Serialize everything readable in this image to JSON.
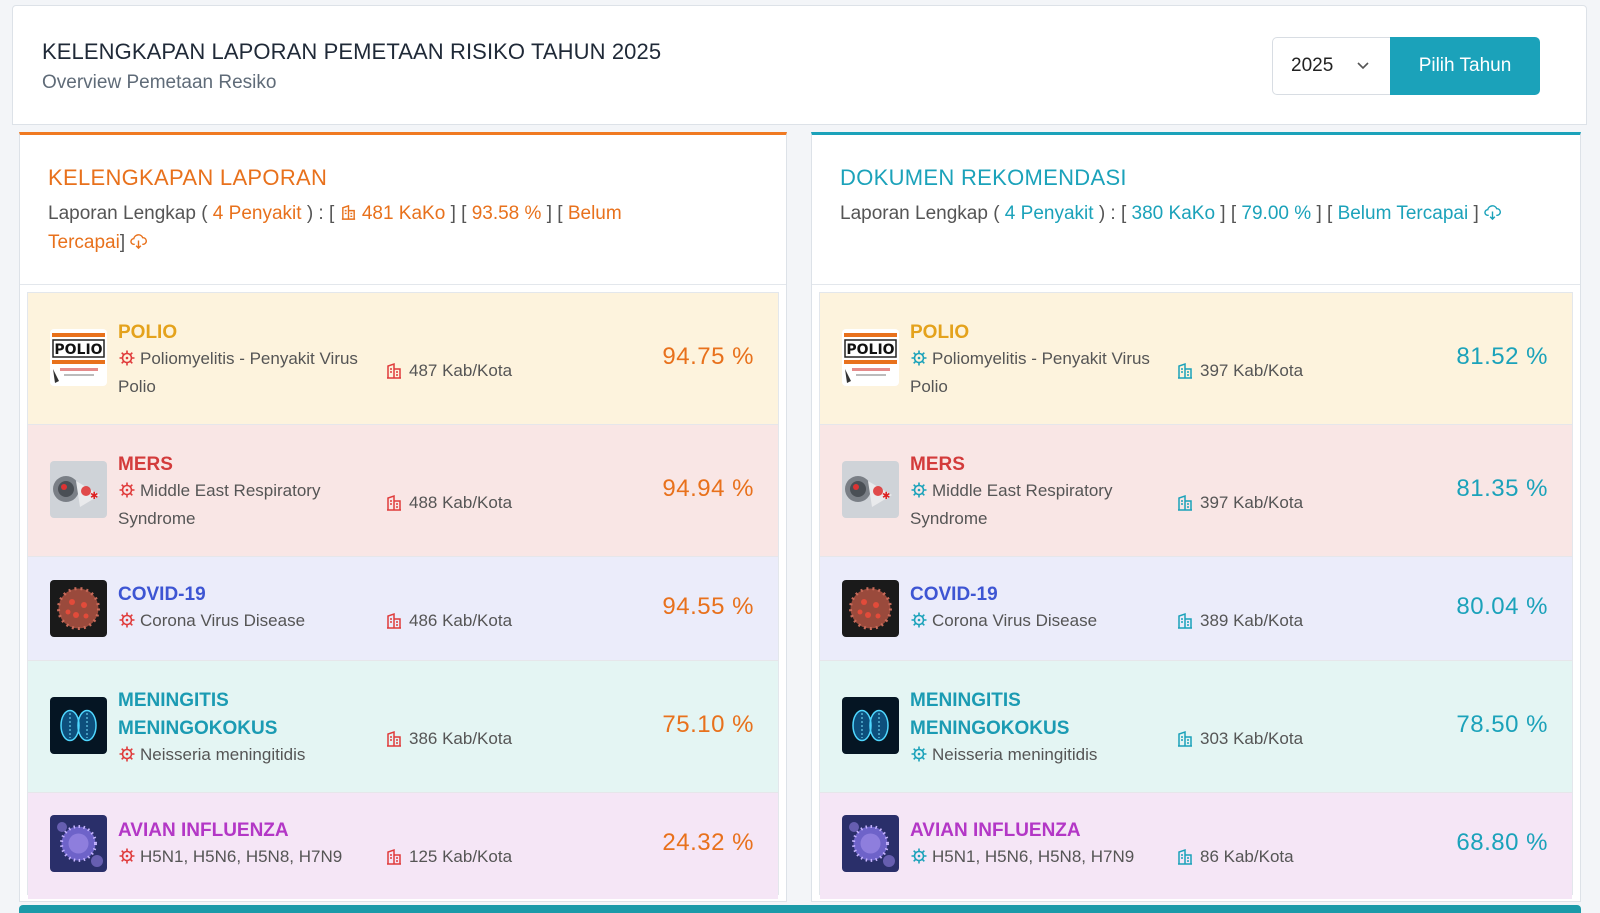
{
  "header": {
    "title": "KELENGKAPAN LAPORAN PEMETAAN RISIKO TAHUN 2025",
    "subtitle": "Overview Pemetaan Resiko",
    "year_value": "2025",
    "pick_button": "Pilih Tahun"
  },
  "colors": {
    "left_accent": "#e8711c",
    "right_accent": "#1ba2ba",
    "polio": "#e4a21c",
    "mers": "#d33b3b",
    "covid": "#3d55d3",
    "meningitis": "#1b9bb3",
    "avian": "#b337c6"
  },
  "left": {
    "title": "KELENGKAPAN LAPORAN",
    "summary_prefix": "Laporan Lengkap (",
    "penyakit": "4 Penyakit",
    "sep1": ") : [",
    "kako": "481 KaKo",
    "sep2": "] [",
    "percent": "93.58 %",
    "sep3": "] [",
    "status": "Belum Tercapai",
    "sep4": "]",
    "rows": [
      {
        "name": "POLIO",
        "desc": "Poliomyelitis - Penyakit Virus Polio",
        "kab": "487 Kab/Kota",
        "pct": "94.75 %"
      },
      {
        "name": "MERS",
        "desc": "Middle East Respiratory Syndrome",
        "kab": "488 Kab/Kota",
        "pct": "94.94 %"
      },
      {
        "name": "COVID-19",
        "desc": "Corona Virus Disease",
        "kab": "486 Kab/Kota",
        "pct": "94.55 %"
      },
      {
        "name": "MENINGITIS MENINGOKOKUS",
        "desc": "Neisseria meningitidis",
        "kab": "386 Kab/Kota",
        "pct": "75.10 %"
      },
      {
        "name": "AVIAN INFLUENZA",
        "desc": "H5N1, H5N6, H5N8, H7N9",
        "kab": "125 Kab/Kota",
        "pct": "24.32 %"
      }
    ]
  },
  "right": {
    "title": "DOKUMEN REKOMENDASI",
    "summary_prefix": "Laporan Lengkap (",
    "penyakit": "4 Penyakit",
    "sep1": ") : [",
    "kako": "380 KaKo",
    "sep2": "] [",
    "percent": "79.00 %",
    "sep3": "] [",
    "status": "Belum Tercapai",
    "sep4": "]",
    "rows": [
      {
        "name": "POLIO",
        "desc": "Poliomyelitis - Penyakit Virus Polio",
        "kab": "397 Kab/Kota",
        "pct": "81.52 %"
      },
      {
        "name": "MERS",
        "desc": "Middle East Respiratory Syndrome",
        "kab": "397 Kab/Kota",
        "pct": "81.35 %"
      },
      {
        "name": "COVID-19",
        "desc": "Corona Virus Disease",
        "kab": "389 Kab/Kota",
        "pct": "80.04 %"
      },
      {
        "name": "MENINGITIS MENINGOKOKUS",
        "desc": "Neisseria meningitidis",
        "kab": "303 Kab/Kota",
        "pct": "78.50 %"
      },
      {
        "name": "AVIAN INFLUENZA",
        "desc": "H5N1, H5N6, H5N8, H7N9",
        "kab": "86 Kab/Kota",
        "pct": "68.80 %"
      }
    ]
  },
  "thumb_logo_text": "POLIO",
  "icons": [
    "chevron-down-icon",
    "building-icon",
    "cloud-download-icon",
    "virus-icon"
  ]
}
